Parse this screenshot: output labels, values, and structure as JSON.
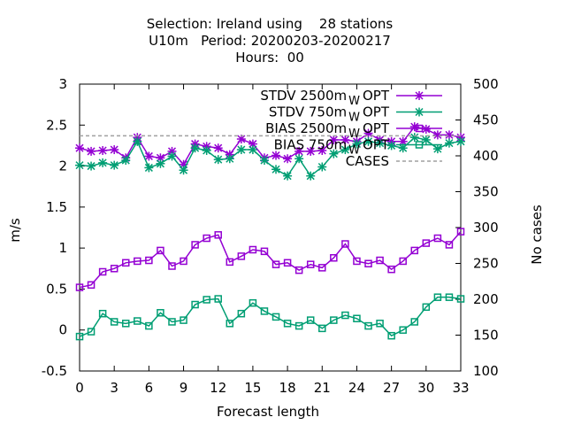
{
  "chart_data": {
    "type": "line",
    "title_lines": [
      "Selection: Ireland using    28 stations",
      "U10m   Period: 20200203-20200217",
      "Hours:  00"
    ],
    "xlabel": "Forecast length",
    "ylabel": "m/s",
    "y2label": "No cases",
    "xlim": [
      0,
      33
    ],
    "ylim": [
      -0.5,
      3
    ],
    "y2lim": [
      100,
      500
    ],
    "xticks": [
      "0",
      "3",
      "6",
      "9",
      "12",
      "15",
      "18",
      "21",
      "24",
      "27",
      "30",
      "33"
    ],
    "yticks": [
      "-0.5",
      "0",
      "0.5",
      "1",
      "1.5",
      "2",
      "2.5",
      "3"
    ],
    "y2ticks": [
      "100",
      "150",
      "200",
      "250",
      "300",
      "350",
      "400",
      "450",
      "500"
    ],
    "grid": false,
    "legend_position": "top-right",
    "x": [
      0,
      1,
      2,
      3,
      4,
      5,
      6,
      7,
      8,
      9,
      10,
      11,
      12,
      13,
      14,
      15,
      16,
      17,
      18,
      19,
      20,
      21,
      22,
      23,
      24,
      25,
      26,
      27,
      28,
      29,
      30,
      31,
      32,
      33
    ],
    "series": [
      {
        "name": "STDV 2500m",
        "name_sub": "W",
        "name_suffix": "OPT",
        "color": "#9400d3",
        "marker": "x",
        "values": [
          2.22,
          2.18,
          2.19,
          2.2,
          2.1,
          2.35,
          2.12,
          2.1,
          2.18,
          2.02,
          2.27,
          2.24,
          2.22,
          2.14,
          2.33,
          2.27,
          2.1,
          2.13,
          2.09,
          2.18,
          2.18,
          2.19,
          2.32,
          2.32,
          2.3,
          2.4,
          2.32,
          2.3,
          2.3,
          2.48,
          2.45,
          2.38,
          2.38,
          2.35
        ]
      },
      {
        "name": "STDV 750m",
        "name_sub": "W",
        "name_suffix": "OPT",
        "color": "#009e73",
        "marker": "x",
        "values": [
          2.01,
          2.0,
          2.04,
          2.01,
          2.07,
          2.3,
          1.98,
          2.03,
          2.12,
          1.95,
          2.22,
          2.19,
          2.08,
          2.09,
          2.2,
          2.2,
          2.07,
          1.96,
          1.88,
          2.09,
          1.88,
          1.99,
          2.15,
          2.2,
          2.27,
          2.3,
          2.28,
          2.25,
          2.22,
          2.35,
          2.32,
          2.21,
          2.28,
          2.3
        ]
      },
      {
        "name": "BIAS 2500m",
        "name_sub": "W",
        "name_suffix": "OPT",
        "color": "#9400d3",
        "marker": "square",
        "values": [
          0.52,
          0.55,
          0.71,
          0.75,
          0.82,
          0.84,
          0.85,
          0.97,
          0.78,
          0.84,
          1.04,
          1.12,
          1.16,
          0.83,
          0.9,
          0.98,
          0.96,
          0.8,
          0.82,
          0.73,
          0.8,
          0.76,
          0.88,
          1.05,
          0.84,
          0.81,
          0.85,
          0.74,
          0.84,
          0.97,
          1.06,
          1.12,
          1.04,
          1.2
        ]
      },
      {
        "name": "BIAS 750m",
        "name_sub": "W",
        "name_suffix": "OPT",
        "color": "#009e73",
        "marker": "square",
        "values": [
          -0.08,
          -0.02,
          0.2,
          0.1,
          0.08,
          0.11,
          0.05,
          0.21,
          0.1,
          0.12,
          0.31,
          0.37,
          0.38,
          0.08,
          0.2,
          0.33,
          0.23,
          0.16,
          0.08,
          0.05,
          0.12,
          0.02,
          0.12,
          0.18,
          0.14,
          0.05,
          0.08,
          -0.07,
          0.0,
          0.1,
          0.28,
          0.4,
          0.4,
          0.38
        ]
      },
      {
        "name": "CASES",
        "color": "#a0a0a0",
        "axis": "y2",
        "style": "dashed",
        "values": [
          428,
          428,
          428,
          428,
          428,
          428,
          428,
          428,
          428,
          428,
          428,
          428,
          428,
          428,
          428,
          428,
          428,
          428,
          428,
          428,
          428,
          428,
          428,
          428,
          428,
          428,
          428,
          428,
          428,
          428,
          428,
          428,
          428,
          428
        ]
      }
    ]
  }
}
